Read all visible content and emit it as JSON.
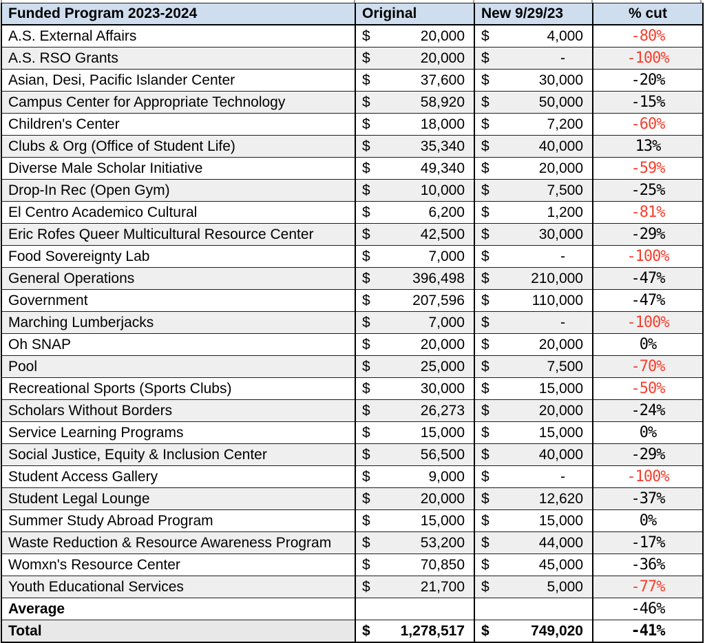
{
  "table": {
    "headers": {
      "program": "Funded Program 2023-2024",
      "original": "Original",
      "new": "New 9/29/23",
      "cut": "% cut"
    },
    "currency_symbol": "$",
    "empty_amount_placeholder": "-",
    "colors": {
      "header_bg": "#cfdeee",
      "alt_row_bg": "#efefef",
      "total_label_bg": "#e8e8e8",
      "negative_cut_red": "#f4402e",
      "grid_border": "#000000"
    },
    "rows": [
      {
        "program": "A.S. External Affairs",
        "original": "20,000",
        "new": "4,000",
        "cut": "-80%",
        "red": true
      },
      {
        "program": "A.S. RSO Grants",
        "original": "20,000",
        "new": "-",
        "cut": "-100%",
        "red": true
      },
      {
        "program": "Asian, Desi, Pacific Islander Center",
        "original": "37,600",
        "new": "30,000",
        "cut": "-20%",
        "red": false
      },
      {
        "program": "Campus Center for Appropriate Technology",
        "original": "58,920",
        "new": "50,000",
        "cut": "-15%",
        "red": false
      },
      {
        "program": "Children's Center",
        "original": "18,000",
        "new": "7,200",
        "cut": "-60%",
        "red": true
      },
      {
        "program": "Clubs & Org (Office of Student Life)",
        "original": "35,340",
        "new": "40,000",
        "cut": "13%",
        "red": false
      },
      {
        "program": "Diverse Male Scholar Initiative",
        "original": "49,340",
        "new": "20,000",
        "cut": "-59%",
        "red": true
      },
      {
        "program": "Drop-In Rec (Open Gym)",
        "original": "10,000",
        "new": "7,500",
        "cut": "-25%",
        "red": false
      },
      {
        "program": "El Centro Academico Cultural",
        "original": "6,200",
        "new": "1,200",
        "cut": "-81%",
        "red": true
      },
      {
        "program": "Eric Rofes Queer Multicultural Resource Center",
        "original": "42,500",
        "new": "30,000",
        "cut": "-29%",
        "red": false
      },
      {
        "program": "Food Sovereignty Lab",
        "original": "7,000",
        "new": "-",
        "cut": "-100%",
        "red": true
      },
      {
        "program": "General Operations",
        "original": "396,498",
        "new": "210,000",
        "cut": "-47%",
        "red": false
      },
      {
        "program": "Government",
        "original": "207,596",
        "new": "110,000",
        "cut": "-47%",
        "red": false
      },
      {
        "program": "Marching Lumberjacks",
        "original": "7,000",
        "new": "-",
        "cut": "-100%",
        "red": true
      },
      {
        "program": "Oh SNAP",
        "original": "20,000",
        "new": "20,000",
        "cut": "0%",
        "red": false
      },
      {
        "program": "Pool",
        "original": "25,000",
        "new": "7,500",
        "cut": "-70%",
        "red": true
      },
      {
        "program": "Recreational Sports (Sports Clubs)",
        "original": "30,000",
        "new": "15,000",
        "cut": "-50%",
        "red": true
      },
      {
        "program": "Scholars Without Borders",
        "original": "26,273",
        "new": "20,000",
        "cut": "-24%",
        "red": false
      },
      {
        "program": "Service Learning Programs",
        "original": "15,000",
        "new": "15,000",
        "cut": "0%",
        "red": false
      },
      {
        "program": "Social Justice, Equity & Inclusion Center",
        "original": "56,500",
        "new": "40,000",
        "cut": "-29%",
        "red": false
      },
      {
        "program": "Student Access Gallery",
        "original": "9,000",
        "new": "-",
        "cut": "-100%",
        "red": true
      },
      {
        "program": "Student Legal Lounge",
        "original": "20,000",
        "new": "12,620",
        "cut": "-37%",
        "red": false
      },
      {
        "program": "Summer Study Abroad Program",
        "original": "15,000",
        "new": "15,000",
        "cut": "0%",
        "red": false
      },
      {
        "program": "Waste Reduction & Resource Awareness Program",
        "original": "53,200",
        "new": "44,000",
        "cut": "-17%",
        "red": false
      },
      {
        "program": "Womxn's Resource Center",
        "original": "70,850",
        "new": "45,000",
        "cut": "-36%",
        "red": false
      },
      {
        "program": "Youth Educational Services",
        "original": "21,700",
        "new": "5,000",
        "cut": "-77%",
        "red": true
      }
    ],
    "summary": {
      "average": {
        "label": "Average",
        "original": "",
        "new": "",
        "cut": "-46%",
        "red": false
      },
      "total": {
        "label": "Total",
        "original": "1,278,517",
        "new": "749,020",
        "cut": "-41%",
        "red": false
      }
    }
  }
}
